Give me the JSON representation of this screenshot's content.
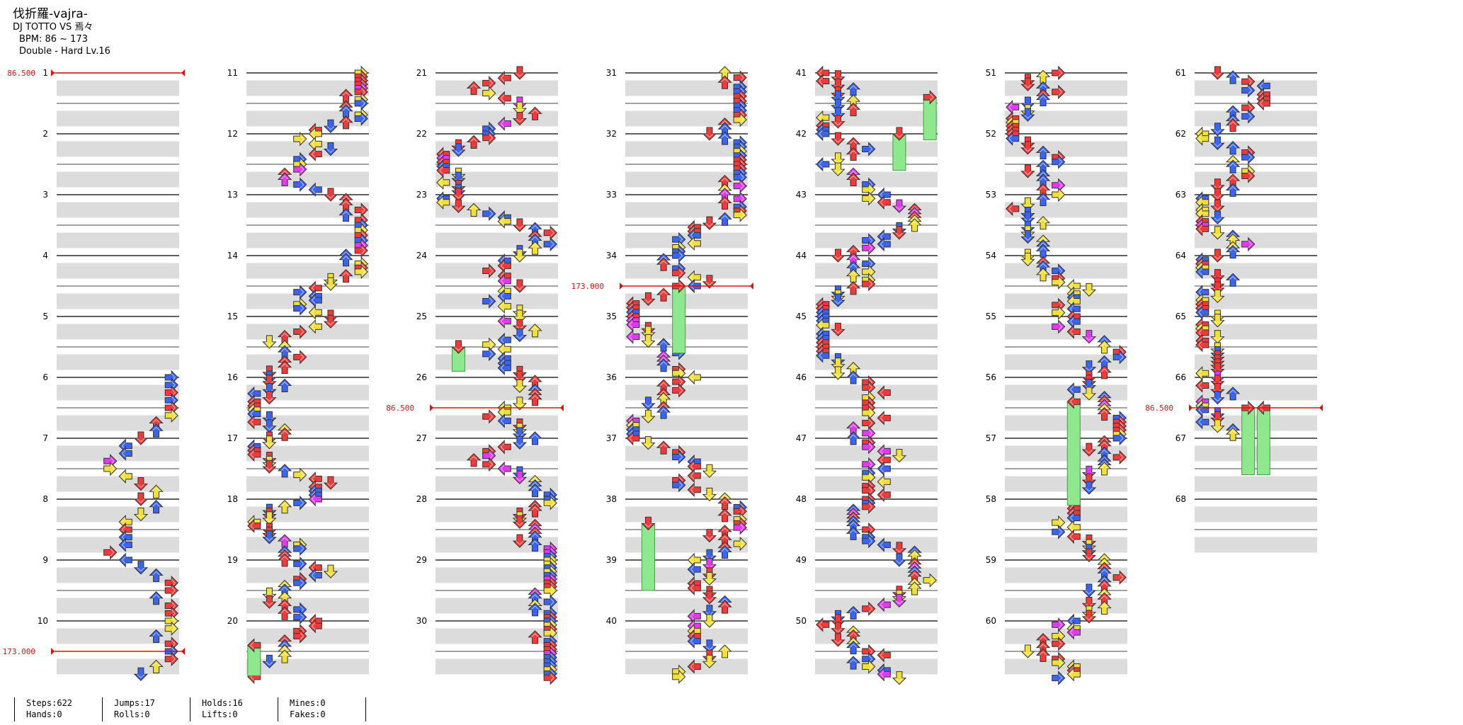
{
  "song": {
    "title": "伐折羅-vajra-",
    "artist": "DJ TOTTO VS 焉々",
    "bpm_text": "BPM: 86 ~ 173",
    "difficulty_text": "Double - Hard Lv.16"
  },
  "chart": {
    "columns": [
      {
        "start": 1,
        "end": 10
      },
      {
        "start": 11,
        "end": 20
      },
      {
        "start": 21,
        "end": 30
      },
      {
        "start": 31,
        "end": 40
      },
      {
        "start": 41,
        "end": 50
      },
      {
        "start": 51,
        "end": 60
      },
      {
        "start": 61,
        "end": 68
      }
    ],
    "bpm_changes": [
      {
        "label": "86.500",
        "column": 0,
        "measure": 0
      },
      {
        "label": "173.000",
        "column": 0,
        "measure": 9.5
      },
      {
        "label": "86.500",
        "column": 2,
        "measure": 5.5
      },
      {
        "label": "173.000",
        "column": 3,
        "measure": 3.5
      },
      {
        "label": "86.500",
        "column": 6,
        "measure": 5.5
      }
    ],
    "colors": {
      "red": "#f23a3a",
      "blue": "#3a64f2",
      "yellow": "#f2e03a",
      "magenta": "#e23af2",
      "freeze": "#8ee88e",
      "bpm_line": "#e01010"
    }
  },
  "stats": {
    "steps": "Steps:622",
    "jumps": "Jumps:17",
    "holds": "Holds:16",
    "mines": "Mines:0",
    "hands": "Hands:0",
    "rolls": "Rolls:0",
    "lifts": "Lifts:0",
    "fakes": "Fakes:0"
  }
}
